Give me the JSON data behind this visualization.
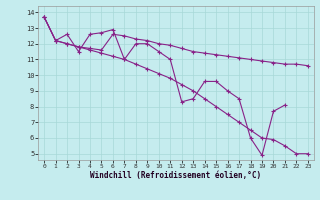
{
  "xlabel": "Windchill (Refroidissement éolien,°C)",
  "background_color": "#c5ecee",
  "grid_color": "#a8d8d8",
  "line_color": "#882288",
  "xlim_min": -0.5,
  "xlim_max": 23.5,
  "ylim_min": 4.6,
  "ylim_max": 14.4,
  "xticks": [
    0,
    1,
    2,
    3,
    4,
    5,
    6,
    7,
    8,
    9,
    10,
    11,
    12,
    13,
    14,
    15,
    16,
    17,
    18,
    19,
    20,
    21,
    22,
    23
  ],
  "yticks": [
    5,
    6,
    7,
    8,
    9,
    10,
    11,
    12,
    13,
    14
  ],
  "line1_x": [
    0,
    1,
    2,
    3,
    4,
    5,
    6,
    7,
    8,
    9,
    10,
    11,
    12,
    13,
    14,
    15,
    16,
    17,
    18,
    19,
    20,
    21
  ],
  "line1_y": [
    13.7,
    12.2,
    12.6,
    11.5,
    12.6,
    12.7,
    12.9,
    11.0,
    12.0,
    12.0,
    11.5,
    11.0,
    8.3,
    8.5,
    9.6,
    9.6,
    9.0,
    8.5,
    6.0,
    4.9,
    7.7,
    8.1
  ],
  "line2_x": [
    0,
    1,
    2,
    3,
    4,
    5,
    6,
    7,
    8,
    9,
    10,
    11,
    12,
    13,
    14,
    15,
    16,
    17,
    18,
    19,
    20,
    21,
    22,
    23
  ],
  "line2_y": [
    13.7,
    12.2,
    12.0,
    11.8,
    11.7,
    11.6,
    12.6,
    12.5,
    12.3,
    12.2,
    12.0,
    11.9,
    11.7,
    11.5,
    11.4,
    11.3,
    11.2,
    11.1,
    11.0,
    10.9,
    10.8,
    10.7,
    10.7,
    10.6
  ],
  "line3_x": [
    0,
    1,
    2,
    3,
    4,
    5,
    6,
    7,
    8,
    9,
    10,
    11,
    12,
    13,
    14,
    15,
    16,
    17,
    18,
    19,
    20,
    21,
    22,
    23
  ],
  "line3_y": [
    13.7,
    12.2,
    12.0,
    11.8,
    11.6,
    11.4,
    11.2,
    11.0,
    10.7,
    10.4,
    10.1,
    9.8,
    9.4,
    9.0,
    8.5,
    8.0,
    7.5,
    7.0,
    6.5,
    6.0,
    5.9,
    5.5,
    5.0,
    5.0
  ]
}
